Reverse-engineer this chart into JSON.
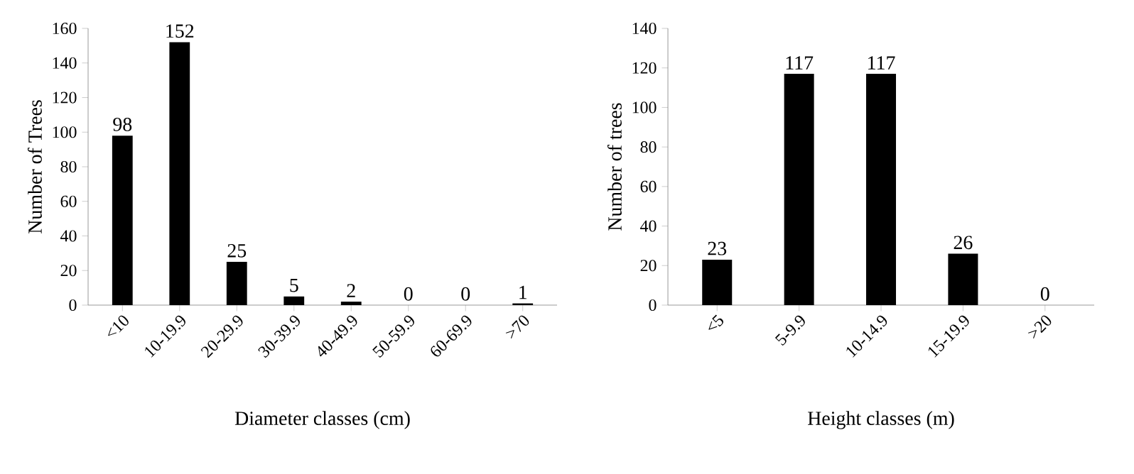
{
  "chart_data": [
    {
      "type": "bar",
      "categories": [
        "<10",
        "10-19.9",
        "20-29.9",
        "30-39.9",
        "40-49.9",
        "50-59.9",
        "60-69.9",
        ">70"
      ],
      "values": [
        98,
        152,
        25,
        5,
        2,
        0,
        0,
        1
      ],
      "color": "#000000",
      "ylim": [
        0,
        160
      ],
      "yticks": [
        0,
        20,
        40,
        60,
        80,
        100,
        120,
        140,
        160
      ],
      "xlabel": "Diameter classes  (cm)",
      "ylabel": "Number of Trees",
      "data_labels": true
    },
    {
      "type": "bar",
      "categories": [
        "<5",
        "5-9.9",
        "10-14.9",
        "15-19.9",
        ">20"
      ],
      "values": [
        23,
        117,
        117,
        26,
        0
      ],
      "color": "#000000",
      "ylim": [
        0,
        140
      ],
      "yticks": [
        0,
        20,
        40,
        60,
        80,
        100,
        120,
        140
      ],
      "xlabel": "Height classes (m)",
      "ylabel": "Number of trees",
      "data_labels": true
    }
  ]
}
